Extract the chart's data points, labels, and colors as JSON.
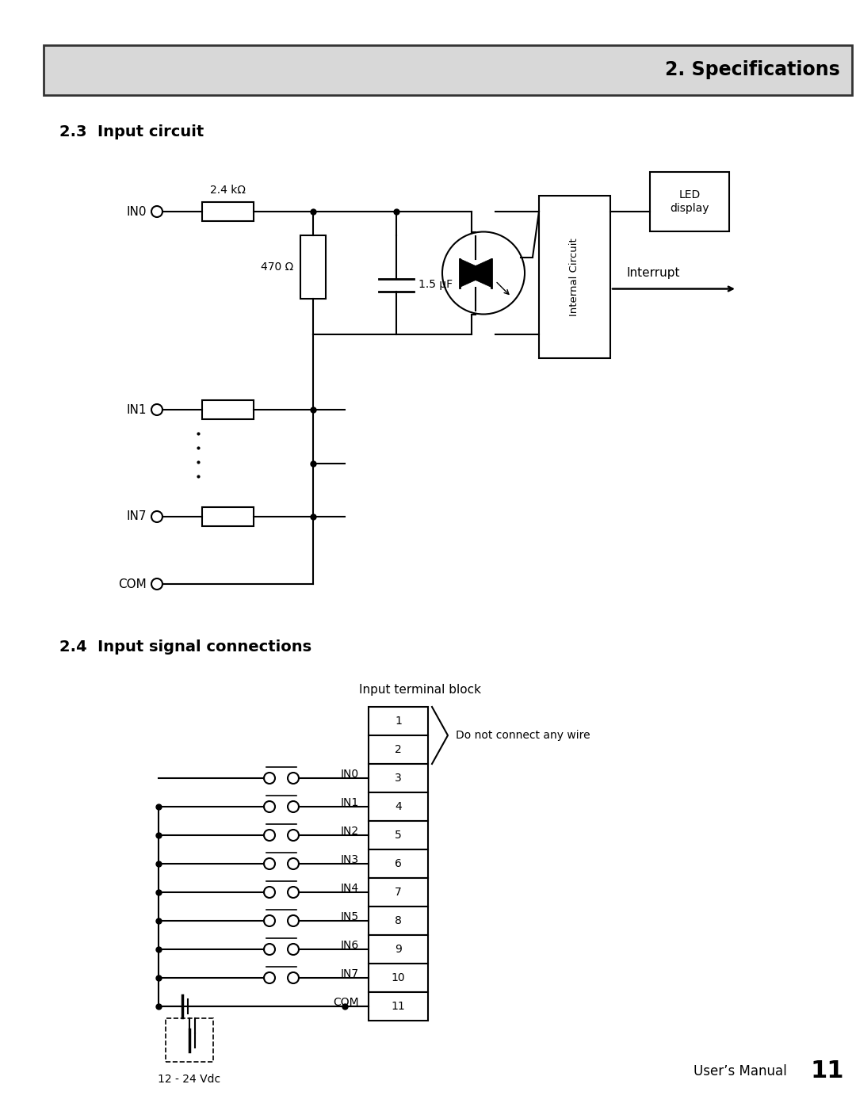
{
  "page_title": "2. Specifications",
  "section1_title": "2.3  Input circuit",
  "section2_title": "2.4  Input signal connections",
  "footer_text": "User’s Manual",
  "footer_num": "11",
  "bg_color": "#ffffff",
  "header_bg": "#d8d8d8",
  "resistor_label1": "2.4 kΩ",
  "resistor_label2": "470 Ω",
  "cap_label": "1.5 μF",
  "led_display_label": "LED\ndisplay",
  "internal_circuit_label": "Internal Circuit",
  "interrupt_label": "Interrupt",
  "do_not_connect_label": "Do not connect any wire",
  "terminal_block_label": "Input terminal block",
  "voltage_label": "12 - 24 Vdc",
  "terminal_numbers": [
    "1",
    "2",
    "3",
    "4",
    "5",
    "6",
    "7",
    "8",
    "9",
    "10",
    "11"
  ]
}
